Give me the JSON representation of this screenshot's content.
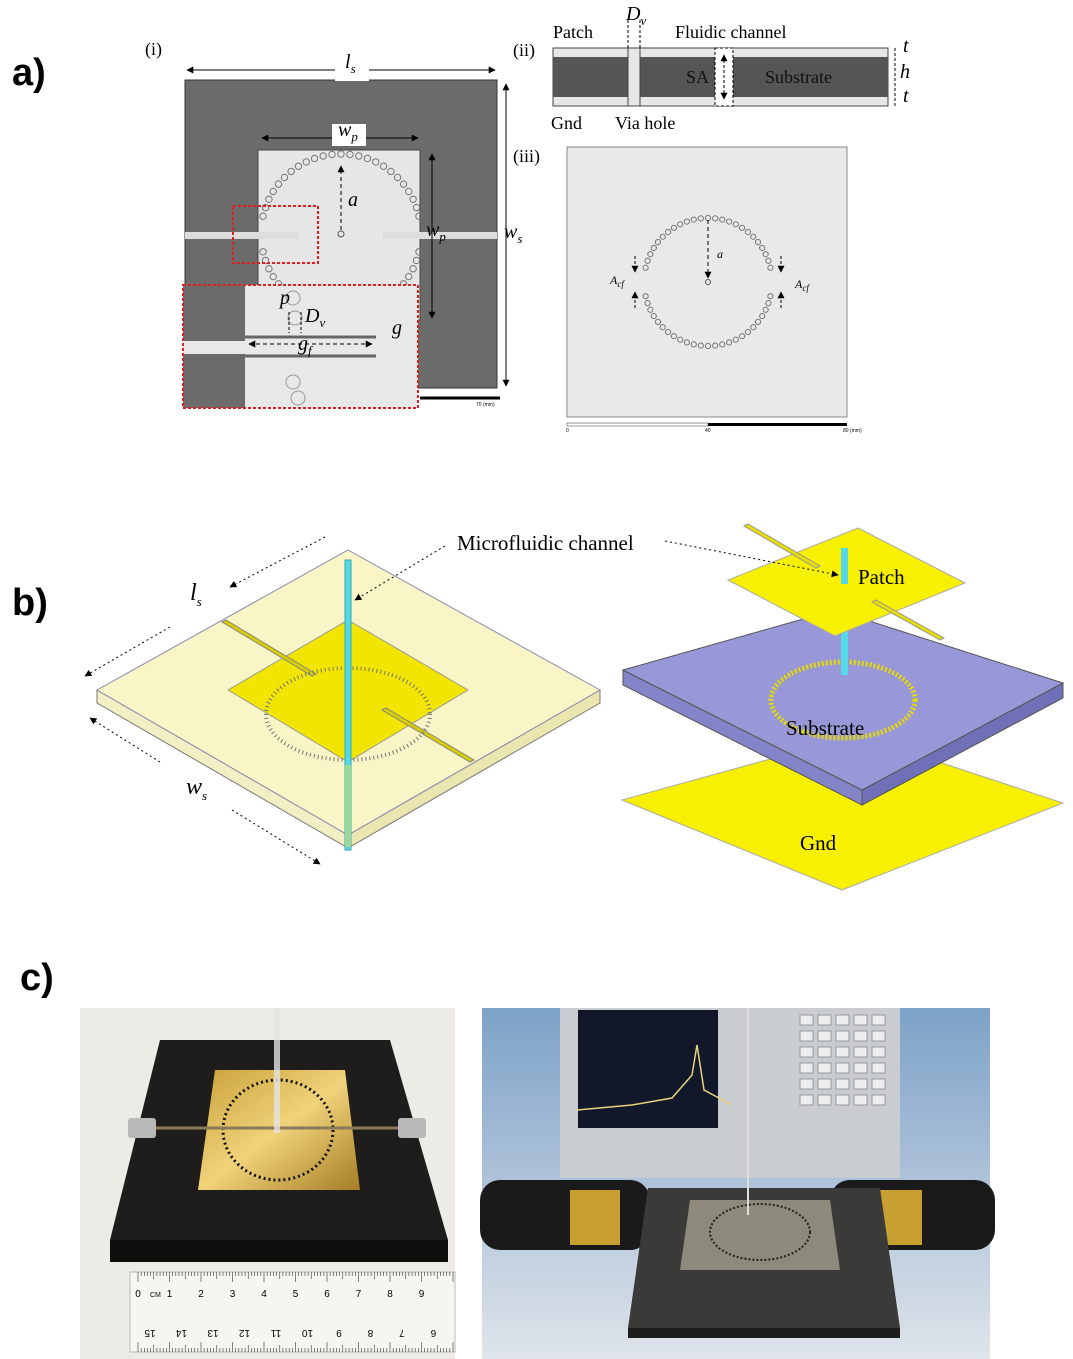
{
  "panel_a": {
    "label": "a)",
    "i": {
      "label": "(i)",
      "ls": {
        "base": "l",
        "sub": "s"
      },
      "wp_top": {
        "base": "w",
        "sub": "p"
      },
      "a": "a",
      "wp_side": {
        "base": "w",
        "sub": "p"
      },
      "ws": {
        "base": "w",
        "sub": "s"
      },
      "p": "p",
      "Dv": {
        "base": "D",
        "sub": "v"
      },
      "g": "g",
      "gf": {
        "base": "g",
        "sub": "f"
      },
      "scale": "70 (mm)"
    },
    "ii": {
      "label": "(ii)",
      "patch": "Patch",
      "Dv": {
        "base": "D",
        "sub": "v"
      },
      "fluidic": "Fluidic channel",
      "t_top": "t",
      "h": "h",
      "t_bottom": "t",
      "sa": "SA",
      "substrate": "Substrate",
      "gnd": "Gnd",
      "via": "Via hole"
    },
    "iii": {
      "label": "(iii)",
      "a": "a",
      "acf_left": {
        "base": "A",
        "sub": "cf"
      },
      "acf_right": {
        "base": "A",
        "sub": "cf"
      },
      "scale": [
        "0",
        "40",
        "80 (mm)"
      ]
    }
  },
  "panel_b": {
    "label": "b)",
    "ls": {
      "base": "l",
      "sub": "s"
    },
    "ws": {
      "base": "w",
      "sub": "s"
    },
    "channel": "Microfluidic channel",
    "patch": "Patch",
    "substrate": "Substrate",
    "gnd": "Gnd"
  },
  "panel_c": {
    "label": "c)",
    "ruler": {
      "unit": "CM",
      "top": [
        "0",
        "1",
        "2",
        "3",
        "4",
        "5",
        "6",
        "7",
        "8",
        "9"
      ],
      "bottom": [
        "15",
        "14",
        "13",
        "12",
        "11",
        "10",
        "9",
        "8",
        "7",
        "6"
      ]
    }
  }
}
